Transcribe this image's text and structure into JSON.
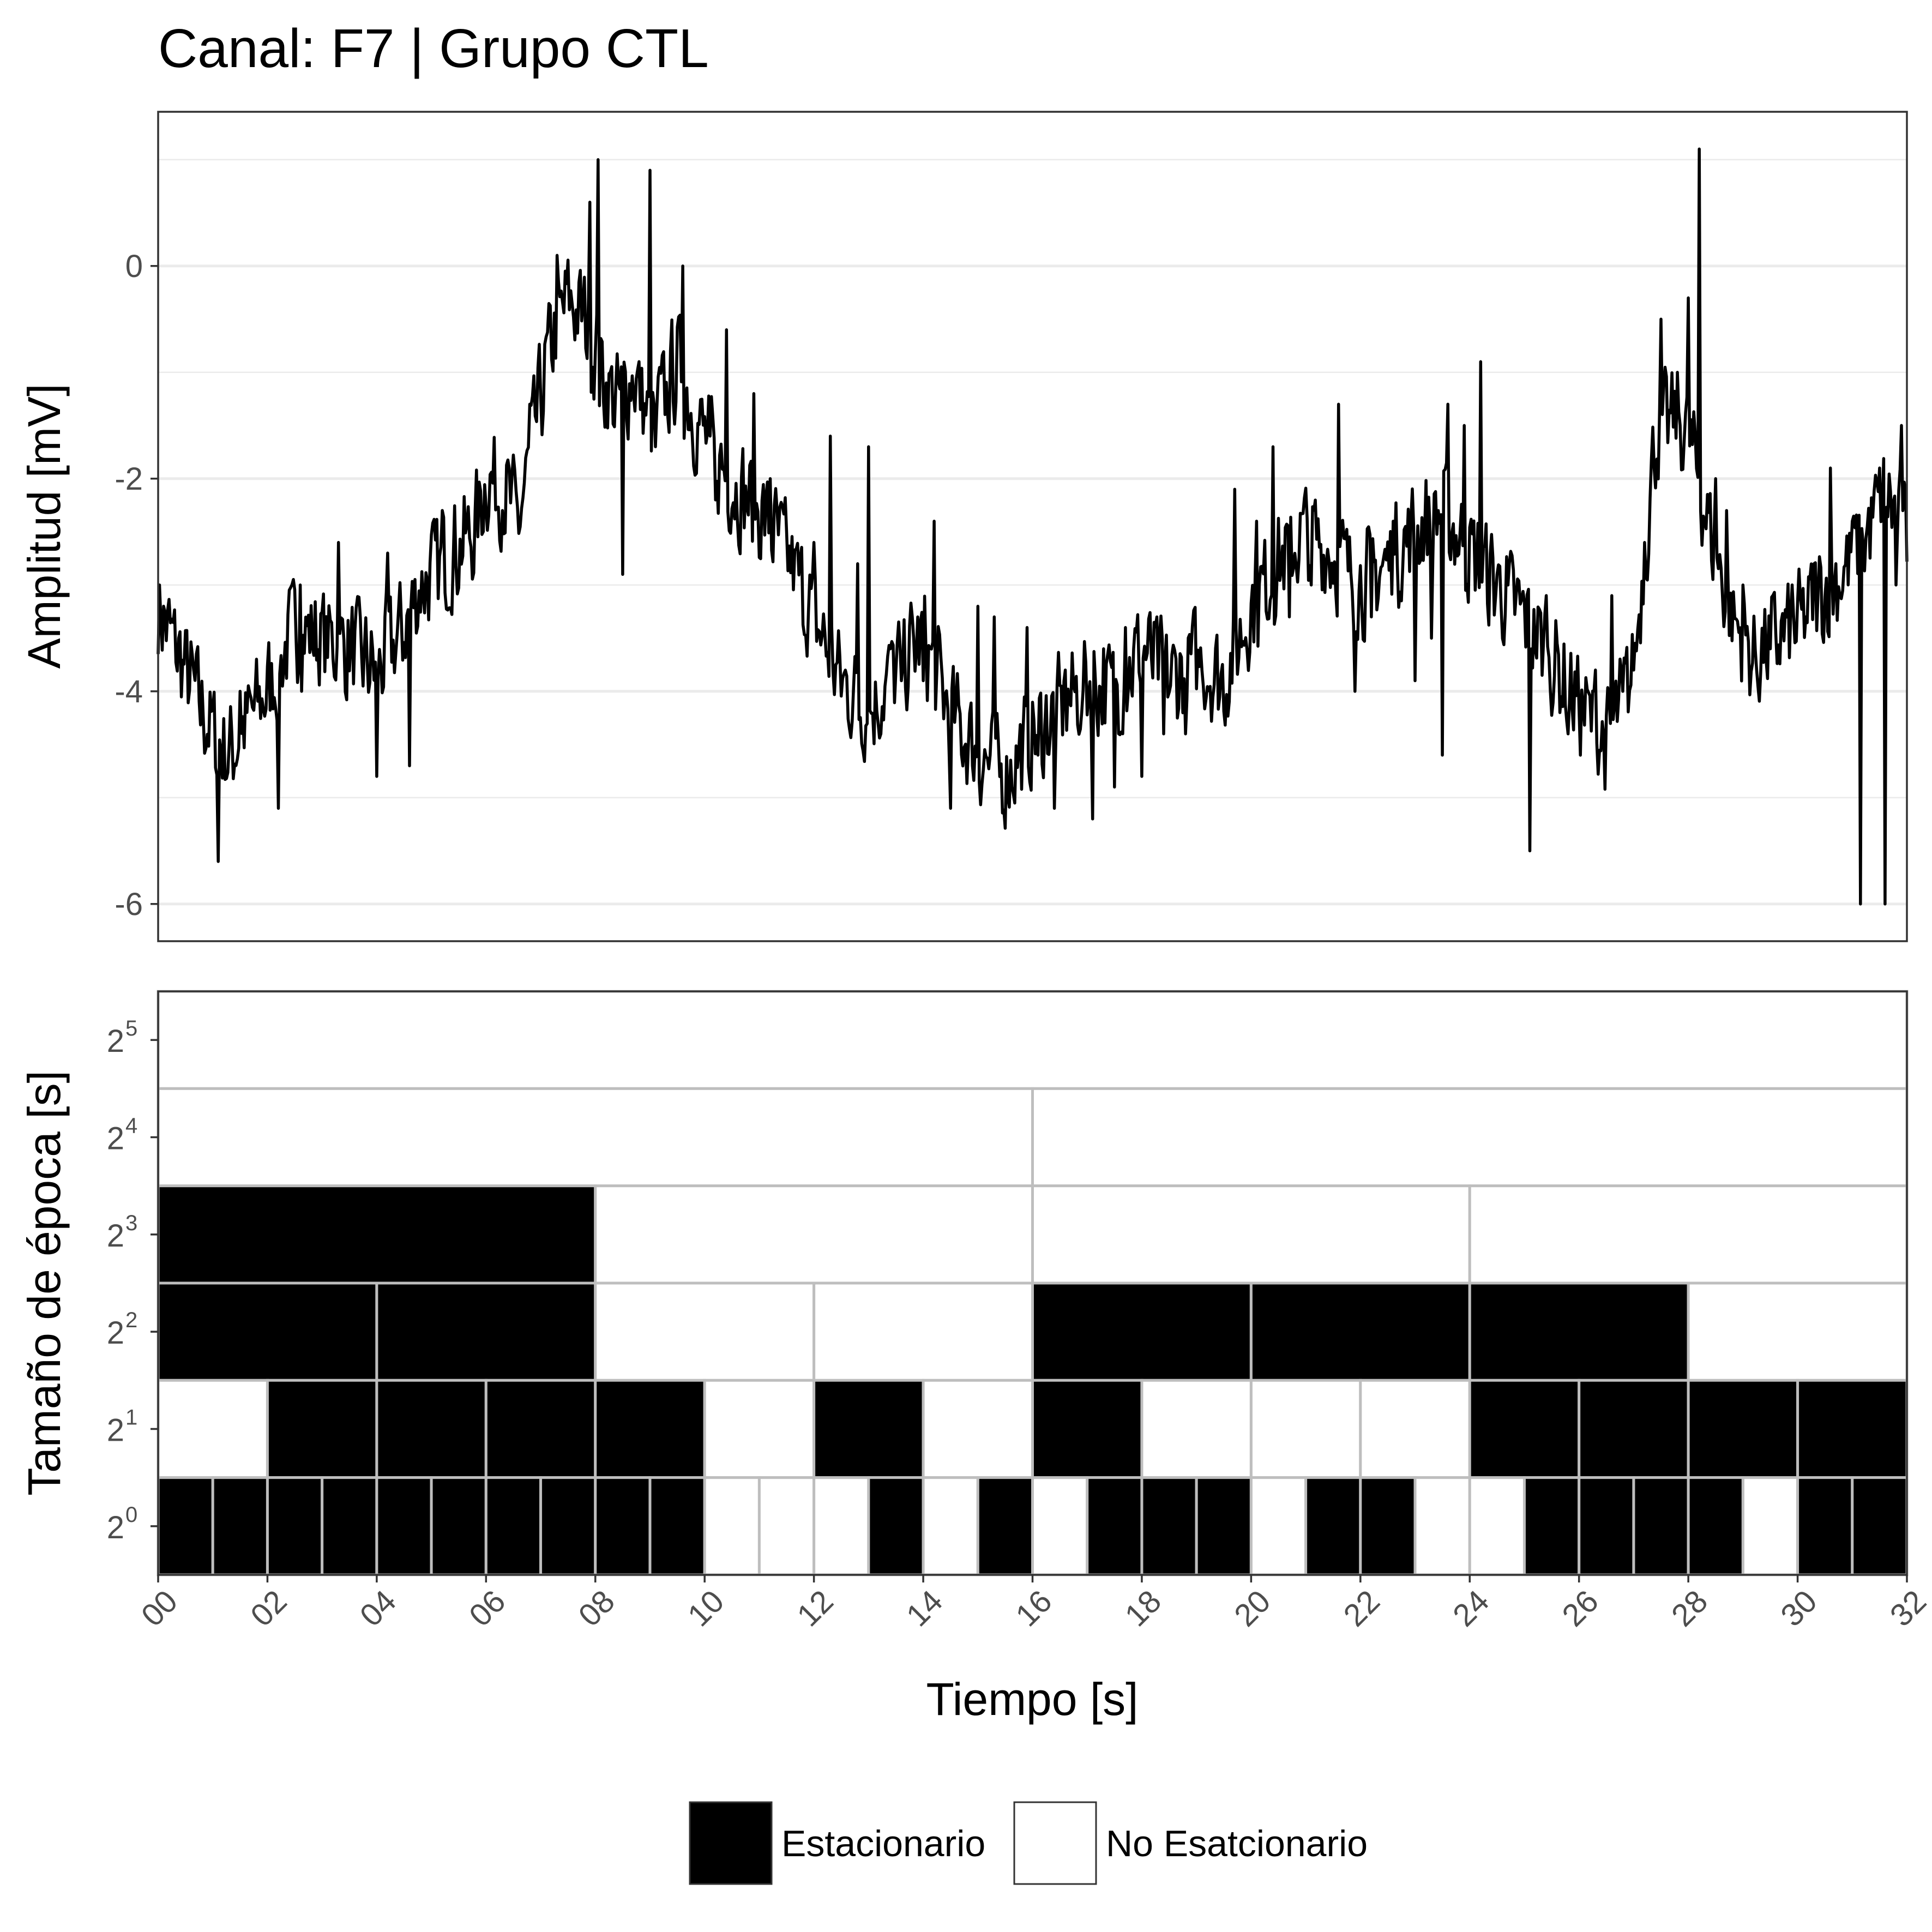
{
  "title": "Canal: F7 | Grupo CTL",
  "colors": {
    "signal": "#000000",
    "stationary": "#000000",
    "non_stationary": "#ffffff",
    "tile_border": "#bebebe",
    "gridline": "#ebebeb",
    "tick_text": "#4d4d4d"
  },
  "chart_data": [
    {
      "type": "line",
      "name": "signal",
      "ylabel": "Amplitud [mV]",
      "xlim": [
        0,
        32
      ],
      "ylim": [
        -6.35,
        1.45
      ],
      "yticks": [
        0,
        -2,
        -4,
        -6
      ],
      "grid": true,
      "x_axis_shown": false,
      "resample_dt": 0.025,
      "anchors": [
        [
          0.0,
          -3.2
        ],
        [
          0.5,
          -3.8
        ],
        [
          1.0,
          -4.4
        ],
        [
          1.3,
          -4.6
        ],
        [
          1.6,
          -4.3
        ],
        [
          2.0,
          -4.0
        ],
        [
          2.5,
          -3.4
        ],
        [
          3.0,
          -3.5
        ],
        [
          3.5,
          -3.6
        ],
        [
          4.0,
          -3.8
        ],
        [
          4.5,
          -3.4
        ],
        [
          4.8,
          -3.0
        ],
        [
          5.2,
          -2.8
        ],
        [
          5.8,
          -2.5
        ],
        [
          6.0,
          -2.0
        ],
        [
          6.3,
          -2.1
        ],
        [
          6.6,
          -2.4
        ],
        [
          6.9,
          -1.5
        ],
        [
          7.2,
          -0.7
        ],
        [
          7.5,
          -0.3
        ],
        [
          7.8,
          -0.5
        ],
        [
          8.1,
          -1.0
        ],
        [
          8.4,
          -1.3
        ],
        [
          8.7,
          -1.0
        ],
        [
          9.0,
          -1.5
        ],
        [
          9.3,
          -1.2
        ],
        [
          9.5,
          -0.9
        ],
        [
          9.8,
          -1.4
        ],
        [
          10.2,
          -1.8
        ],
        [
          10.6,
          -2.1
        ],
        [
          11.0,
          -2.3
        ],
        [
          11.5,
          -2.7
        ],
        [
          12.0,
          -3.3
        ],
        [
          12.5,
          -3.9
        ],
        [
          13.0,
          -4.2
        ],
        [
          13.5,
          -3.8
        ],
        [
          14.0,
          -3.5
        ],
        [
          14.5,
          -4.2
        ],
        [
          15.0,
          -4.6
        ],
        [
          15.5,
          -4.8
        ],
        [
          16.0,
          -4.4
        ],
        [
          16.5,
          -4.2
        ],
        [
          17.0,
          -3.9
        ],
        [
          17.5,
          -4.0
        ],
        [
          18.0,
          -3.6
        ],
        [
          18.5,
          -3.9
        ],
        [
          19.0,
          -3.7
        ],
        [
          19.5,
          -3.9
        ],
        [
          20.0,
          -3.2
        ],
        [
          20.5,
          -2.8
        ],
        [
          21.0,
          -2.5
        ],
        [
          21.5,
          -2.7
        ],
        [
          22.0,
          -3.0
        ],
        [
          22.5,
          -2.8
        ],
        [
          23.0,
          -2.5
        ],
        [
          23.5,
          -2.3
        ],
        [
          24.0,
          -2.7
        ],
        [
          24.5,
          -3.0
        ],
        [
          25.0,
          -3.3
        ],
        [
          25.5,
          -3.7
        ],
        [
          26.0,
          -4.1
        ],
        [
          26.5,
          -4.5
        ],
        [
          27.0,
          -3.8
        ],
        [
          27.4,
          -1.6
        ],
        [
          27.8,
          -1.4
        ],
        [
          28.1,
          -1.8
        ],
        [
          28.4,
          -2.5
        ],
        [
          28.8,
          -3.3
        ],
        [
          29.2,
          -3.7
        ],
        [
          29.6,
          -3.5
        ],
        [
          30.0,
          -3.4
        ],
        [
          30.4,
          -3.1
        ],
        [
          30.8,
          -2.9
        ],
        [
          31.2,
          -2.6
        ],
        [
          31.6,
          -2.1
        ],
        [
          32.0,
          -2.6
        ]
      ],
      "peaks": [
        [
          1.1,
          -5.6
        ],
        [
          1.5,
          -4.0
        ],
        [
          2.2,
          -5.1
        ],
        [
          2.6,
          -3.0
        ],
        [
          3.3,
          -2.6
        ],
        [
          4.0,
          -4.8
        ],
        [
          4.2,
          -2.7
        ],
        [
          4.6,
          -4.7
        ],
        [
          5.2,
          -2.3
        ],
        [
          6.3,
          -2.3
        ],
        [
          6.8,
          -1.3
        ],
        [
          7.3,
          0.1
        ],
        [
          7.9,
          0.6
        ],
        [
          8.05,
          1.0
        ],
        [
          8.5,
          -2.9
        ],
        [
          8.8,
          -0.9
        ],
        [
          9.0,
          0.9
        ],
        [
          9.1,
          -1.7
        ],
        [
          9.6,
          0.0
        ],
        [
          10.1,
          -1.6
        ],
        [
          10.2,
          -2.2
        ],
        [
          10.4,
          -0.6
        ],
        [
          10.9,
          -1.2
        ],
        [
          11.2,
          -2.0
        ],
        [
          11.5,
          -2.5
        ],
        [
          12.0,
          -2.6
        ],
        [
          12.3,
          -1.6
        ],
        [
          12.8,
          -2.8
        ],
        [
          13.0,
          -1.7
        ],
        [
          13.4,
          -3.6
        ],
        [
          13.6,
          -3.9
        ],
        [
          14.0,
          -3.9
        ],
        [
          14.2,
          -2.4
        ],
        [
          14.5,
          -5.1
        ],
        [
          14.9,
          -4.7
        ],
        [
          15.0,
          -3.2
        ],
        [
          15.3,
          -3.3
        ],
        [
          15.9,
          -3.4
        ],
        [
          16.1,
          -4.6
        ],
        [
          16.4,
          -5.1
        ],
        [
          16.6,
          -3.8
        ],
        [
          16.9,
          -4.2
        ],
        [
          17.1,
          -5.2
        ],
        [
          17.3,
          -3.6
        ],
        [
          17.5,
          -4.9
        ],
        [
          17.7,
          -3.4
        ],
        [
          18.0,
          -4.8
        ],
        [
          18.4,
          -4.4
        ],
        [
          18.8,
          -4.4
        ],
        [
          19.1,
          -3.8
        ],
        [
          19.7,
          -2.1
        ],
        [
          20.1,
          -2.4
        ],
        [
          20.4,
          -1.7
        ],
        [
          20.7,
          -3.3
        ],
        [
          21.1,
          -3.0
        ],
        [
          21.6,
          -1.3
        ],
        [
          21.9,
          -4.0
        ],
        [
          22.2,
          -3.3
        ],
        [
          22.6,
          -2.4
        ],
        [
          23.0,
          -3.9
        ],
        [
          23.3,
          -3.5
        ],
        [
          23.5,
          -4.6
        ],
        [
          23.6,
          -1.3
        ],
        [
          23.9,
          -1.5
        ],
        [
          24.2,
          -0.9
        ],
        [
          24.5,
          -2.9
        ],
        [
          24.7,
          -3.0
        ],
        [
          25.1,
          -5.5
        ],
        [
          25.4,
          -3.1
        ],
        [
          25.8,
          -4.4
        ],
        [
          26.3,
          -3.8
        ],
        [
          26.6,
          -3.1
        ],
        [
          26.8,
          -4.0
        ],
        [
          27.0,
          -3.8
        ],
        [
          27.2,
          -2.6
        ],
        [
          27.5,
          -0.5
        ],
        [
          27.8,
          -1.0
        ],
        [
          28.0,
          -0.3
        ],
        [
          28.2,
          1.1
        ],
        [
          28.5,
          -2.0
        ],
        [
          28.7,
          -2.3
        ],
        [
          29.0,
          -3.0
        ],
        [
          29.5,
          -3.6
        ],
        [
          29.9,
          -3.0
        ],
        [
          30.3,
          -2.8
        ],
        [
          30.6,
          -1.9
        ],
        [
          31.0,
          -2.4
        ],
        [
          31.5,
          -1.9
        ],
        [
          31.8,
          -3.0
        ],
        [
          31.9,
          -1.5
        ],
        [
          31.15,
          -6.0
        ],
        [
          31.6,
          -6.0
        ]
      ]
    },
    {
      "type": "heatmap",
      "name": "stationarity",
      "ylabel": "Tamaño de época [s]",
      "xlabel": "Tiempo [s]",
      "xlim": [
        0,
        32
      ],
      "xticks": [
        "00",
        "02",
        "04",
        "06",
        "08",
        "10",
        "12",
        "14",
        "16",
        "18",
        "20",
        "22",
        "24",
        "26",
        "28",
        "30",
        "32"
      ],
      "levels": [
        {
          "base": "2",
          "exp": "5",
          "epoch": 32,
          "states": [
            0
          ]
        },
        {
          "base": "2",
          "exp": "4",
          "epoch": 16,
          "states": [
            0,
            0
          ]
        },
        {
          "base": "2",
          "exp": "3",
          "epoch": 8,
          "states": [
            1,
            0,
            0,
            0
          ]
        },
        {
          "base": "2",
          "exp": "2",
          "epoch": 4,
          "states": [
            1,
            1,
            0,
            0,
            1,
            1,
            1,
            0
          ]
        },
        {
          "base": "2",
          "exp": "1",
          "epoch": 2,
          "states": [
            0,
            1,
            1,
            1,
            1,
            0,
            1,
            0,
            1,
            0,
            0,
            0,
            1,
            1,
            1,
            1
          ]
        },
        {
          "base": "2",
          "exp": "0",
          "epoch": 1,
          "states": [
            1,
            1,
            1,
            1,
            1,
            1,
            1,
            1,
            1,
            1,
            0,
            0,
            0,
            1,
            0,
            1,
            0,
            1,
            1,
            1,
            0,
            1,
            1,
            0,
            0,
            1,
            1,
            1,
            1,
            0,
            1,
            1
          ]
        }
      ],
      "legend": {
        "position": "bottom",
        "entries": [
          {
            "label": "Estacionario",
            "state": 1
          },
          {
            "label": "No Esatcionario",
            "state": 0
          }
        ]
      }
    }
  ]
}
